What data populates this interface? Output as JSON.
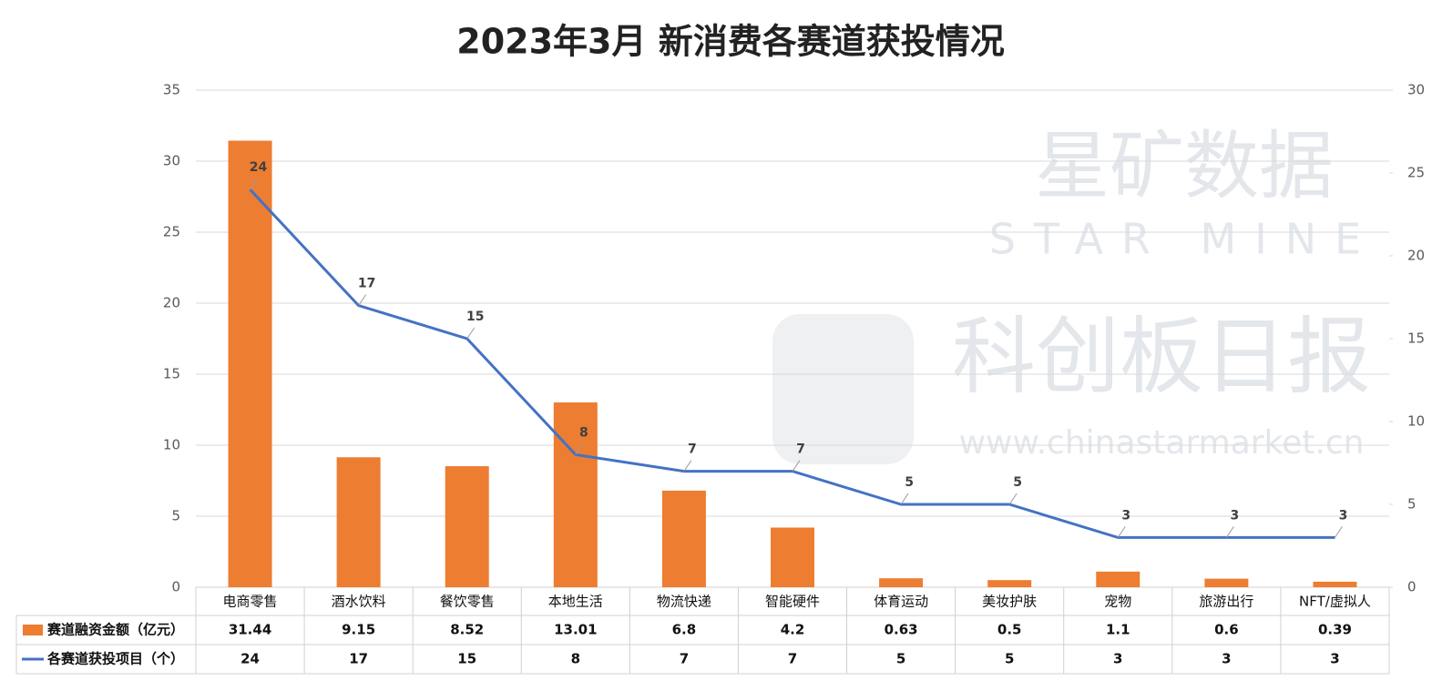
{
  "chart_data": {
    "type": "bar",
    "title": "2023年3月 新消费各赛道获投情况",
    "categories": [
      "电商零售",
      "酒水饮料",
      "餐饮零售",
      "本地生活",
      "物流快递",
      "智能硬件",
      "体育运动",
      "美妆护肤",
      "宠物",
      "旅游出行",
      "NFT/虚拟人"
    ],
    "series": [
      {
        "name": "赛道融资金额（亿元）",
        "type": "bar",
        "color": "#ed7d31",
        "values": [
          31.44,
          9.15,
          8.52,
          13.01,
          6.8,
          4.2,
          0.63,
          0.5,
          1.1,
          0.6,
          0.39
        ]
      },
      {
        "name": "各赛道获投项目（个）",
        "type": "line",
        "axis": "y2",
        "color": "#4472c4",
        "values": [
          24,
          17,
          15,
          8,
          7,
          7,
          5,
          5,
          3,
          3,
          3
        ]
      }
    ],
    "ylim": [
      0,
      35
    ],
    "yticks": [
      0,
      5,
      10,
      15,
      20,
      25,
      30,
      35
    ],
    "y2lim": [
      0,
      30
    ],
    "y2ticks": [
      0,
      5,
      10,
      15,
      20,
      25,
      30
    ],
    "grid": true,
    "data_table": true,
    "watermark": [
      "星矿数据",
      "STAR MINE",
      "科创板日报",
      "www.chinastarmarket.cn"
    ]
  }
}
